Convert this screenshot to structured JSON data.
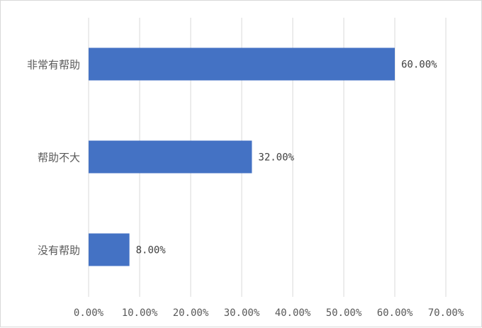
{
  "chart_data": {
    "type": "bar",
    "orientation": "horizontal",
    "title": "",
    "xlabel": "",
    "ylabel": "",
    "categories": [
      "非常有帮助",
      "帮助不大",
      "没有帮助"
    ],
    "values": [
      60,
      32,
      8
    ],
    "value_labels": [
      "60.00%",
      "32.00%",
      "8.00%"
    ],
    "xlim": [
      0,
      70
    ],
    "x_ticks": [
      0,
      10,
      20,
      30,
      40,
      50,
      60,
      70
    ],
    "x_tick_labels": [
      "0.00%",
      "10.00%",
      "20.00%",
      "30.00%",
      "40.00%",
      "50.00%",
      "60.00%",
      "70.00%"
    ],
    "grid": "vertical",
    "legend": "none",
    "bar_color": "#4472C4",
    "grid_color": "#d9d9d9"
  }
}
